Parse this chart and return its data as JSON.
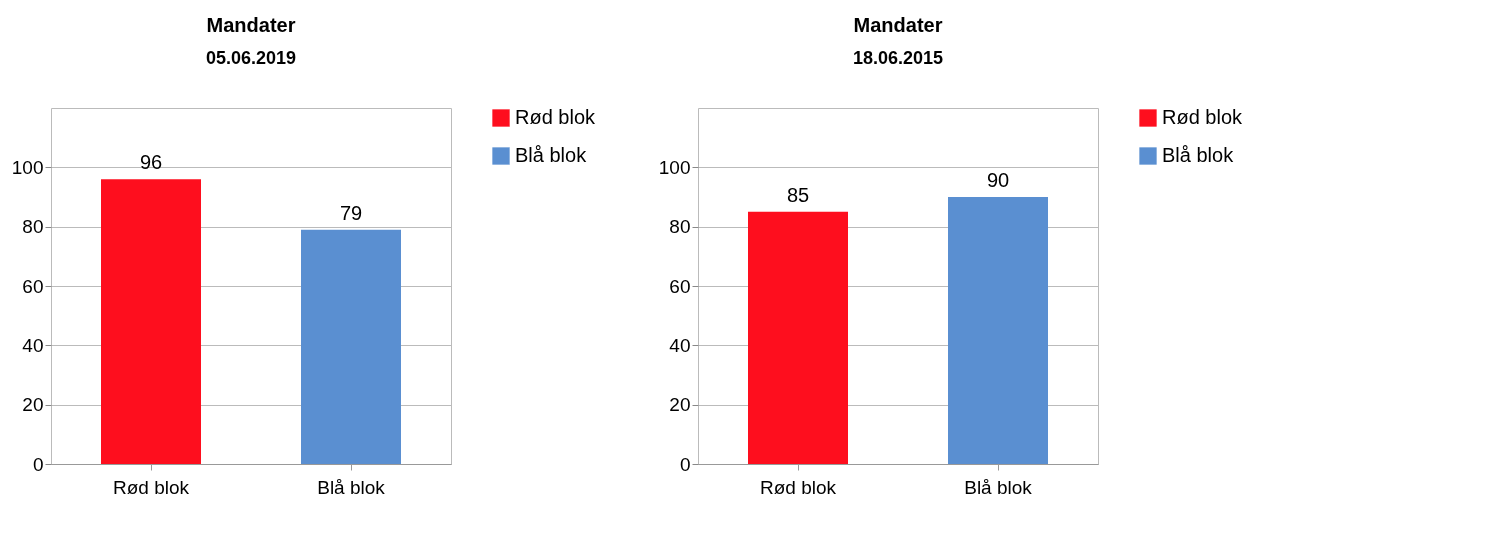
{
  "chart_data": [
    {
      "type": "bar",
      "title": "Mandater",
      "subtitle": "05.06.2019",
      "categories": [
        "Rød blok",
        "Blå blok"
      ],
      "stacked": true,
      "series": [
        {
          "name": "Rød blok",
          "color": "#fe0e1e",
          "values": [
            96,
            null
          ]
        },
        {
          "name": "Blå blok",
          "color": "#5a8fd1",
          "values": [
            null,
            79
          ]
        }
      ],
      "ylim": [
        0,
        120
      ],
      "yticks": [
        0,
        20,
        40,
        60,
        80,
        100
      ],
      "grid": "y",
      "legend": "right",
      "data_labels": true
    },
    {
      "type": "bar",
      "title": "Mandater",
      "subtitle": "18.06.2015",
      "categories": [
        "Rød blok",
        "Blå blok"
      ],
      "stacked": true,
      "series": [
        {
          "name": "Rød blok",
          "color": "#fe0e1e",
          "values": [
            85,
            null
          ]
        },
        {
          "name": "Blå blok",
          "color": "#5a8fd1",
          "values": [
            null,
            90
          ]
        }
      ],
      "ylim": [
        0,
        120
      ],
      "yticks": [
        0,
        20,
        40,
        60,
        80,
        100
      ],
      "grid": "y",
      "legend": "right",
      "data_labels": true
    }
  ]
}
